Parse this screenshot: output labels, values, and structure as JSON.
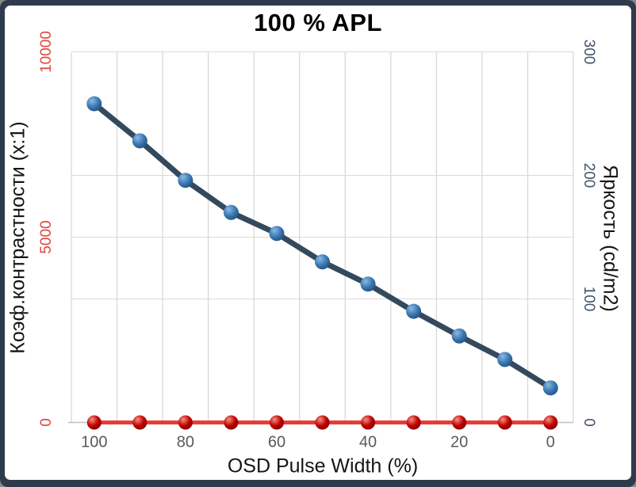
{
  "chart_data": {
    "type": "line",
    "title": "100 % APL",
    "x_axis": {
      "label": "OSD Pulse Width (%)",
      "categories": [
        100,
        90,
        80,
        70,
        60,
        50,
        40,
        30,
        20,
        10,
        0
      ],
      "tick_labels": [
        "100",
        "80",
        "60",
        "40",
        "20",
        "0"
      ],
      "direction": "descending",
      "tick_color": "#595959"
    },
    "left_axis": {
      "label": "Коэф.контрастности (x:1)",
      "range": [
        0,
        10000
      ],
      "ticks": [
        10000,
        5000,
        0
      ],
      "tick_color": "#e1463f"
    },
    "right_axis": {
      "label": "Яркость (cd/m2)",
      "range": [
        0,
        300
      ],
      "ticks": [
        300,
        200,
        100,
        0
      ],
      "tick_color": "#44546a"
    },
    "series": [
      {
        "name": "Коэф.контрастности (x:1)",
        "axis": "left",
        "line_color": "#e83c38",
        "line_width": 5,
        "marker_radius": 9,
        "marker_colors": [
          "#f29182",
          "#c00000",
          "#7c0000"
        ],
        "values": [
          0,
          0,
          0,
          0,
          0,
          0,
          0,
          0,
          0,
          0,
          0
        ]
      },
      {
        "name": "Яркость (cd/m2)",
        "axis": "right",
        "line_color": "#33495e",
        "line_width": 7,
        "marker_radius": 9.5,
        "marker_colors": [
          "#8ab9e6",
          "#3a76b0",
          "#1f4e79"
        ],
        "values": [
          258,
          228,
          196,
          170,
          153,
          130,
          112,
          90,
          70,
          51,
          28
        ]
      }
    ],
    "grid_color": "#d9d9d9",
    "axis_line_color": "#bfbfbf",
    "frame_color": "#2f3b4d",
    "background": "#ffffff",
    "legend": "none"
  }
}
